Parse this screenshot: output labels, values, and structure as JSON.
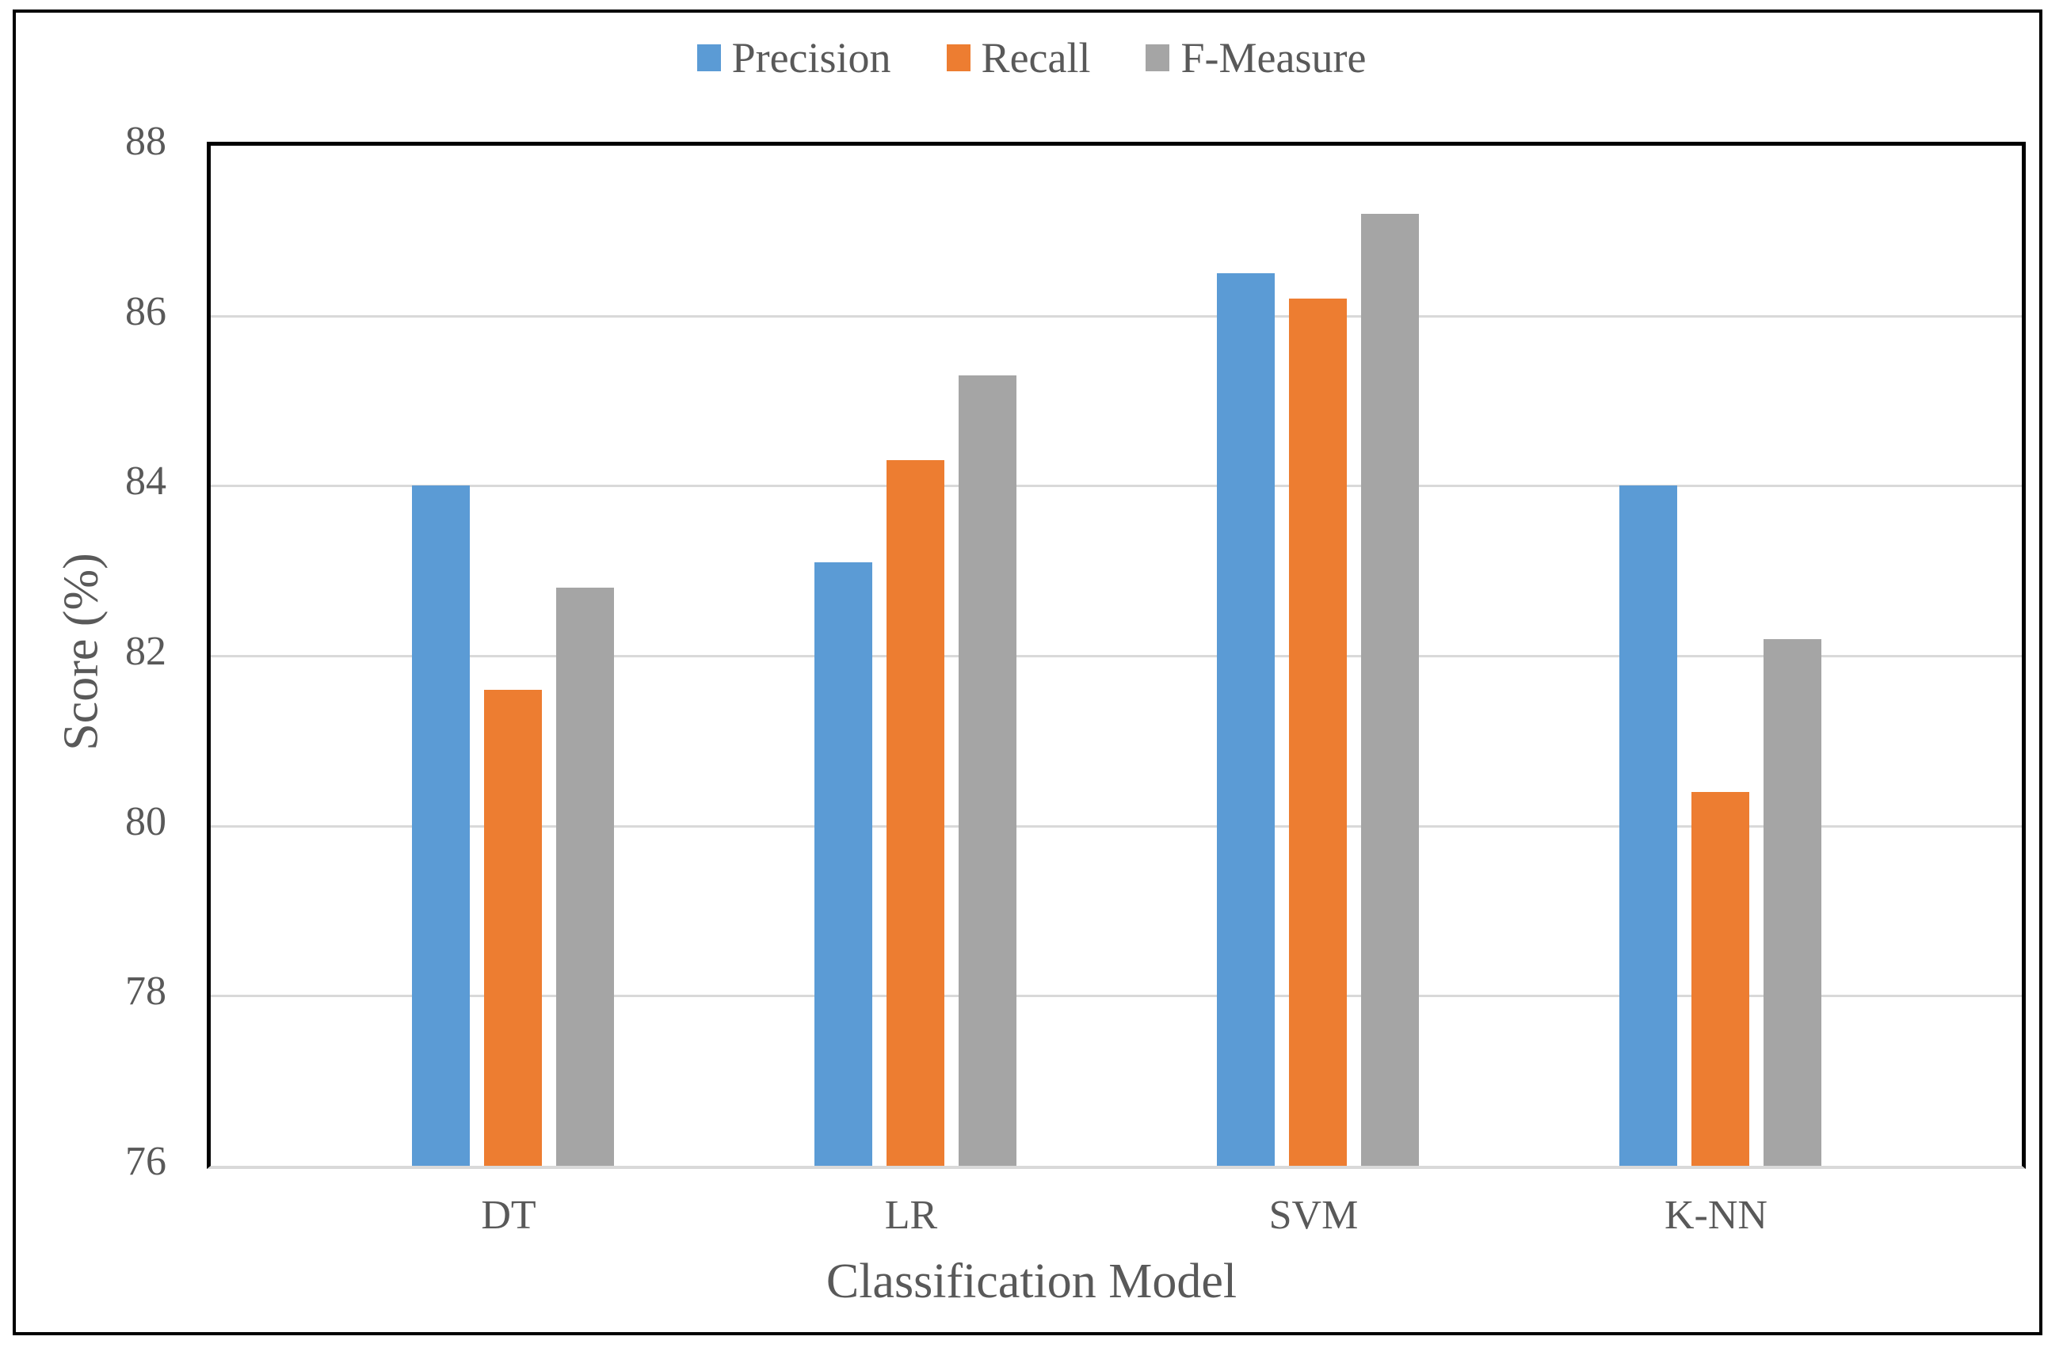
{
  "figure": {
    "background_color": "#FFFFFF",
    "outer_border_color": "#000000",
    "plot_border_color": "#000000",
    "axis_line_color": "#D9D9D9",
    "text_color": "#595959"
  },
  "chart_data": {
    "type": "bar",
    "title": "",
    "categories": [
      "DT",
      "LR",
      "SVM",
      "K-NN"
    ],
    "series": [
      {
        "name": "Precision",
        "color": "#5B9BD5",
        "values": [
          84.0,
          83.1,
          86.5,
          84.0
        ]
      },
      {
        "name": "Recall",
        "color": "#ED7D31",
        "values": [
          81.6,
          84.3,
          86.2,
          80.4
        ]
      },
      {
        "name": "F-Measure",
        "color": "#A5A5A5",
        "values": [
          82.8,
          85.3,
          87.2,
          82.2
        ]
      }
    ],
    "xlabel": "Classification Model",
    "ylabel": "Score (%)",
    "ylim": [
      76,
      88
    ],
    "yticks": [
      76,
      78,
      80,
      82,
      84,
      86,
      88
    ],
    "ytick_step": 2,
    "grid": "horizontal",
    "gridline_color": "#D9D9D9",
    "legend_position": "top-center",
    "legend_labels": [
      "Precision",
      "Recall",
      "F-Measure"
    ]
  }
}
